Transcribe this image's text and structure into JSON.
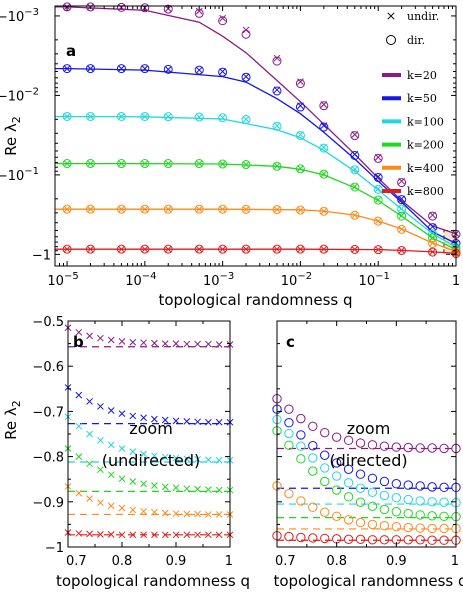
{
  "colors": {
    "k=20": "#8b1a89",
    "k=50": "#1515e6",
    "k=100": "#20d8dc",
    "k=200": "#20d820",
    "k=400": "#ff8a1a",
    "k=800": "#e01c1c",
    "highlight": "#f5e8c8",
    "highlight_border": "#222222"
  },
  "chart_data": [
    {
      "panel": "a",
      "type": "line+scatter",
      "xscale": "log",
      "xlim": [
        7e-06,
        1
      ],
      "ylim": [
        0.00075,
        1.4
      ],
      "yscale": "log (values shown as negative, -10^-3 at top, -1 at bottom)",
      "xlabel": "topological randomness q",
      "ylabel": "Re λ",
      "ylabel_sub": "2",
      "xticks": [
        {
          "value": 1e-05,
          "base": "10",
          "exp": "−5"
        },
        {
          "value": 0.0001,
          "base": "10",
          "exp": "−4"
        },
        {
          "value": 0.001,
          "base": "10",
          "exp": "−3"
        },
        {
          "value": 0.01,
          "base": "10",
          "exp": "−2"
        },
        {
          "value": 0.1,
          "base": "10",
          "exp": "−1"
        },
        {
          "value": 1,
          "base": "1",
          "exp": ""
        }
      ],
      "yticks": [
        {
          "value": 0.001,
          "base": "−10",
          "exp": "−3"
        },
        {
          "value": 0.01,
          "base": "−10",
          "exp": "−2"
        },
        {
          "value": 0.1,
          "base": "−10",
          "exp": "−1"
        },
        {
          "value": 1,
          "base": "−1",
          "exp": ""
        }
      ],
      "legend": [
        {
          "marker": "×",
          "label": "undir."
        },
        {
          "marker": "○",
          "label": "dir."
        },
        {
          "line": "k=20",
          "label": "k=20"
        },
        {
          "line": "k=50",
          "label": "k=50"
        },
        {
          "line": "k=100",
          "label": "k=100"
        },
        {
          "line": "k=200",
          "label": "k=200"
        },
        {
          "line": "k=400",
          "label": "k=400"
        },
        {
          "line": "k=800",
          "label": "k=800"
        }
      ],
      "highlight_box": {
        "x": [
          0.7,
          1
        ],
        "y": [
          0.5,
          1
        ]
      },
      "q_points": [
        1e-05,
        2e-05,
        5e-05,
        0.0001,
        0.0002,
        0.0005,
        0.001,
        0.002,
        0.005,
        0.01,
        0.02,
        0.05,
        0.1,
        0.2,
        0.5,
        1
      ],
      "series": [
        {
          "name": "k=20",
          "theory": [
            [
              7e-06,
              0.00077
            ],
            [
              1e-05,
              0.00077
            ],
            [
              0.0001,
              0.00085
            ],
            [
              0.0005,
              0.0012
            ],
            [
              0.001,
              0.0018
            ],
            [
              0.002,
              0.0029
            ],
            [
              0.005,
              0.0065
            ],
            [
              0.01,
              0.012
            ],
            [
              0.02,
              0.023
            ],
            [
              0.05,
              0.055
            ],
            [
              0.1,
              0.11
            ],
            [
              0.2,
              0.21
            ],
            [
              0.5,
              0.44
            ],
            [
              1,
              0.55
            ]
          ],
          "undirected": [
            0.00077,
            0.00077,
            0.00078,
            0.00079,
            0.00081,
            0.00087,
            0.00107,
            0.0015,
            0.0034,
            0.0067,
            0.013,
            0.031,
            0.06,
            0.12,
            0.32,
            0.55
          ],
          "directed": [
            0.00077,
            0.00077,
            0.00078,
            0.00079,
            0.00082,
            0.00093,
            0.00115,
            0.0017,
            0.0037,
            0.0071,
            0.0135,
            0.032,
            0.062,
            0.125,
            0.33,
            0.56
          ]
        },
        {
          "name": "k=50",
          "theory": [
            [
              7e-06,
              0.0046
            ],
            [
              1e-05,
              0.0046
            ],
            [
              0.0001,
              0.0048
            ],
            [
              0.001,
              0.0058
            ],
            [
              0.002,
              0.0068
            ],
            [
              0.005,
              0.011
            ],
            [
              0.01,
              0.017
            ],
            [
              0.02,
              0.029
            ],
            [
              0.05,
              0.063
            ],
            [
              0.1,
              0.12
            ],
            [
              0.2,
              0.22
            ],
            [
              0.5,
              0.52
            ],
            [
              1,
              0.73
            ]
          ],
          "undirected": [
            0.0046,
            0.0046,
            0.0046,
            0.0046,
            0.0047,
            0.0048,
            0.005,
            0.0058,
            0.0085,
            0.0135,
            0.024,
            0.055,
            0.105,
            0.2,
            0.45,
            0.72
          ],
          "directed": [
            0.0046,
            0.0046,
            0.0046,
            0.0046,
            0.0047,
            0.0048,
            0.0051,
            0.0059,
            0.0088,
            0.014,
            0.025,
            0.057,
            0.108,
            0.205,
            0.46,
            0.73
          ]
        },
        {
          "name": "k=100",
          "theory": [
            [
              7e-06,
              0.0184
            ],
            [
              0.0001,
              0.0186
            ],
            [
              0.001,
              0.0198
            ],
            [
              0.005,
              0.027
            ],
            [
              0.01,
              0.034
            ],
            [
              0.02,
              0.049
            ],
            [
              0.05,
              0.09
            ],
            [
              0.1,
              0.155
            ],
            [
              0.2,
              0.27
            ],
            [
              0.5,
              0.55
            ],
            [
              1,
              0.81
            ]
          ],
          "undirected": [
            0.0184,
            0.0184,
            0.0184,
            0.0184,
            0.0185,
            0.0187,
            0.019,
            0.02,
            0.024,
            0.031,
            0.045,
            0.085,
            0.15,
            0.265,
            0.54,
            0.81
          ],
          "directed": [
            0.0184,
            0.0184,
            0.0184,
            0.0184,
            0.0185,
            0.0187,
            0.0191,
            0.0201,
            0.0245,
            0.032,
            0.046,
            0.086,
            0.152,
            0.27,
            0.55,
            0.82
          ]
        },
        {
          "name": "k=200",
          "theory": [
            [
              7e-06,
              0.072
            ],
            [
              0.0001,
              0.072
            ],
            [
              0.001,
              0.073
            ],
            [
              0.005,
              0.078
            ],
            [
              0.01,
              0.085
            ],
            [
              0.02,
              0.1
            ],
            [
              0.05,
              0.145
            ],
            [
              0.1,
              0.21
            ],
            [
              0.2,
              0.33
            ],
            [
              0.5,
              0.62
            ],
            [
              1,
              0.87
            ]
          ],
          "undirected": [
            0.072,
            0.072,
            0.072,
            0.072,
            0.072,
            0.072,
            0.073,
            0.074,
            0.077,
            0.083,
            0.097,
            0.14,
            0.205,
            0.325,
            0.61,
            0.87
          ],
          "directed": [
            0.072,
            0.072,
            0.072,
            0.072,
            0.072,
            0.072,
            0.073,
            0.074,
            0.078,
            0.084,
            0.098,
            0.142,
            0.207,
            0.33,
            0.62,
            0.88
          ]
        },
        {
          "name": "k=400",
          "theory": [
            [
              7e-06,
              0.27
            ],
            [
              0.001,
              0.27
            ],
            [
              0.01,
              0.275
            ],
            [
              0.02,
              0.285
            ],
            [
              0.05,
              0.32
            ],
            [
              0.1,
              0.38
            ],
            [
              0.2,
              0.48
            ],
            [
              0.5,
              0.72
            ],
            [
              1,
              0.92
            ]
          ],
          "undirected": [
            0.27,
            0.27,
            0.27,
            0.27,
            0.27,
            0.27,
            0.27,
            0.271,
            0.273,
            0.276,
            0.285,
            0.32,
            0.38,
            0.48,
            0.72,
            0.92
          ],
          "directed": [
            0.27,
            0.27,
            0.27,
            0.27,
            0.27,
            0.27,
            0.27,
            0.271,
            0.273,
            0.277,
            0.287,
            0.322,
            0.382,
            0.485,
            0.73,
            0.93
          ]
        },
        {
          "name": "k=800",
          "theory": [
            [
              7e-06,
              0.86
            ],
            [
              0.01,
              0.86
            ],
            [
              0.1,
              0.87
            ],
            [
              0.2,
              0.89
            ],
            [
              0.5,
              0.93
            ],
            [
              1,
              0.97
            ]
          ],
          "undirected": [
            0.86,
            0.86,
            0.86,
            0.86,
            0.86,
            0.86,
            0.86,
            0.86,
            0.86,
            0.86,
            0.86,
            0.865,
            0.87,
            0.89,
            0.93,
            0.97
          ],
          "directed": [
            0.86,
            0.86,
            0.86,
            0.86,
            0.86,
            0.86,
            0.86,
            0.86,
            0.86,
            0.86,
            0.86,
            0.866,
            0.872,
            0.892,
            0.935,
            0.975
          ]
        }
      ]
    },
    {
      "panel": "b",
      "type": "scatter+dashed",
      "marker": "x",
      "xlim": [
        0.7,
        1.0
      ],
      "ylim": [
        -1.0,
        -0.5
      ],
      "xlabel": "topological randomness q",
      "ylabel": "Re λ",
      "ylabel_sub": "2",
      "xticks": [
        0.7,
        0.8,
        0.9,
        1
      ],
      "yticks": [
        -0.5,
        -0.6,
        -0.7,
        -0.8,
        -0.9,
        -1
      ],
      "ytick_labels": [
        "−0.5",
        "−0.6",
        "−0.7",
        "−0.8",
        "−0.9",
        "−1"
      ],
      "xtick_labels": [
        "0.7",
        "0.8",
        "0.9",
        "1"
      ],
      "annotation_line1": "zoom",
      "annotation_line2": "(undirected)",
      "q": [
        0.7,
        0.72,
        0.74,
        0.76,
        0.78,
        0.8,
        0.82,
        0.84,
        0.86,
        0.88,
        0.9,
        0.92,
        0.94,
        0.96,
        0.98,
        1.0
      ],
      "series": [
        {
          "name": "k=20",
          "limit": -0.557,
          "values": [
            -0.515,
            -0.525,
            -0.533,
            -0.538,
            -0.542,
            -0.545,
            -0.547,
            -0.548,
            -0.549,
            -0.55,
            -0.55,
            -0.551,
            -0.551,
            -0.551,
            -0.552,
            -0.552
          ]
        },
        {
          "name": "k=50",
          "limit": -0.727,
          "values": [
            -0.647,
            -0.664,
            -0.678,
            -0.689,
            -0.698,
            -0.705,
            -0.71,
            -0.714,
            -0.717,
            -0.719,
            -0.721,
            -0.722,
            -0.723,
            -0.724,
            -0.724,
            -0.724
          ]
        },
        {
          "name": "k=100",
          "limit": -0.812,
          "values": [
            -0.712,
            -0.733,
            -0.75,
            -0.764,
            -0.774,
            -0.782,
            -0.789,
            -0.794,
            -0.798,
            -0.801,
            -0.803,
            -0.805,
            -0.806,
            -0.807,
            -0.808,
            -0.808
          ]
        },
        {
          "name": "k=200",
          "limit": -0.877,
          "values": [
            -0.782,
            -0.8,
            -0.816,
            -0.829,
            -0.84,
            -0.849,
            -0.855,
            -0.86,
            -0.864,
            -0.867,
            -0.869,
            -0.871,
            -0.872,
            -0.873,
            -0.874,
            -0.874
          ]
        },
        {
          "name": "k=400",
          "limit": -0.928,
          "values": [
            -0.866,
            -0.881,
            -0.893,
            -0.902,
            -0.909,
            -0.914,
            -0.918,
            -0.921,
            -0.923,
            -0.925,
            -0.926,
            -0.927,
            -0.927,
            -0.928,
            -0.928,
            -0.928
          ]
        },
        {
          "name": "k=800",
          "limit": -0.973,
          "values": [
            -0.968,
            -0.97,
            -0.971,
            -0.972,
            -0.972,
            -0.973,
            -0.973,
            -0.973,
            -0.973,
            -0.973,
            -0.973,
            -0.973,
            -0.973,
            -0.973,
            -0.973,
            -0.973
          ]
        }
      ]
    },
    {
      "panel": "c",
      "type": "scatter+dashed",
      "marker": "o",
      "xlim": [
        0.7,
        1.0
      ],
      "ylim": [
        -1.0,
        -0.5
      ],
      "xlabel": "topological randomness q",
      "xticks": [
        0.7,
        0.8,
        0.9,
        1
      ],
      "xtick_labels": [
        "0.7",
        "0.8",
        "0.9",
        "1"
      ],
      "annotation_line1": "zoom",
      "annotation_line2": "(directed)",
      "q": [
        0.7,
        0.72,
        0.74,
        0.76,
        0.78,
        0.8,
        0.82,
        0.84,
        0.86,
        0.88,
        0.9,
        0.92,
        0.94,
        0.96,
        0.98,
        1.0
      ],
      "series": [
        {
          "name": "k=20",
          "limit": -0.782,
          "values": [
            -0.672,
            -0.695,
            -0.716,
            -0.733,
            -0.747,
            -0.757,
            -0.764,
            -0.77,
            -0.774,
            -0.777,
            -0.779,
            -0.78,
            -0.781,
            -0.781,
            -0.782,
            -0.782
          ]
        },
        {
          "name": "k=50",
          "limit": -0.87,
          "values": [
            -0.695,
            -0.725,
            -0.752,
            -0.776,
            -0.797,
            -0.814,
            -0.828,
            -0.839,
            -0.848,
            -0.855,
            -0.86,
            -0.863,
            -0.865,
            -0.867,
            -0.868,
            -0.868
          ]
        },
        {
          "name": "k=100",
          "limit": -0.905,
          "values": [
            -0.718,
            -0.749,
            -0.777,
            -0.803,
            -0.825,
            -0.843,
            -0.858,
            -0.87,
            -0.879,
            -0.886,
            -0.891,
            -0.895,
            -0.898,
            -0.9,
            -0.901,
            -0.902
          ]
        },
        {
          "name": "k=200",
          "limit": -0.935,
          "values": [
            -0.743,
            -0.775,
            -0.805,
            -0.832,
            -0.855,
            -0.874,
            -0.889,
            -0.901,
            -0.91,
            -0.917,
            -0.922,
            -0.926,
            -0.929,
            -0.931,
            -0.932,
            -0.933
          ]
        },
        {
          "name": "k=400",
          "limit": -0.96,
          "values": [
            -0.865,
            -0.882,
            -0.898,
            -0.912,
            -0.923,
            -0.932,
            -0.94,
            -0.946,
            -0.95,
            -0.953,
            -0.955,
            -0.957,
            -0.958,
            -0.959,
            -0.959,
            -0.959
          ]
        },
        {
          "name": "k=800",
          "limit": -0.985,
          "values": [
            -0.975,
            -0.977,
            -0.979,
            -0.98,
            -0.981,
            -0.982,
            -0.983,
            -0.983,
            -0.984,
            -0.984,
            -0.984,
            -0.984,
            -0.984,
            -0.985,
            -0.985,
            -0.985
          ]
        }
      ]
    }
  ]
}
